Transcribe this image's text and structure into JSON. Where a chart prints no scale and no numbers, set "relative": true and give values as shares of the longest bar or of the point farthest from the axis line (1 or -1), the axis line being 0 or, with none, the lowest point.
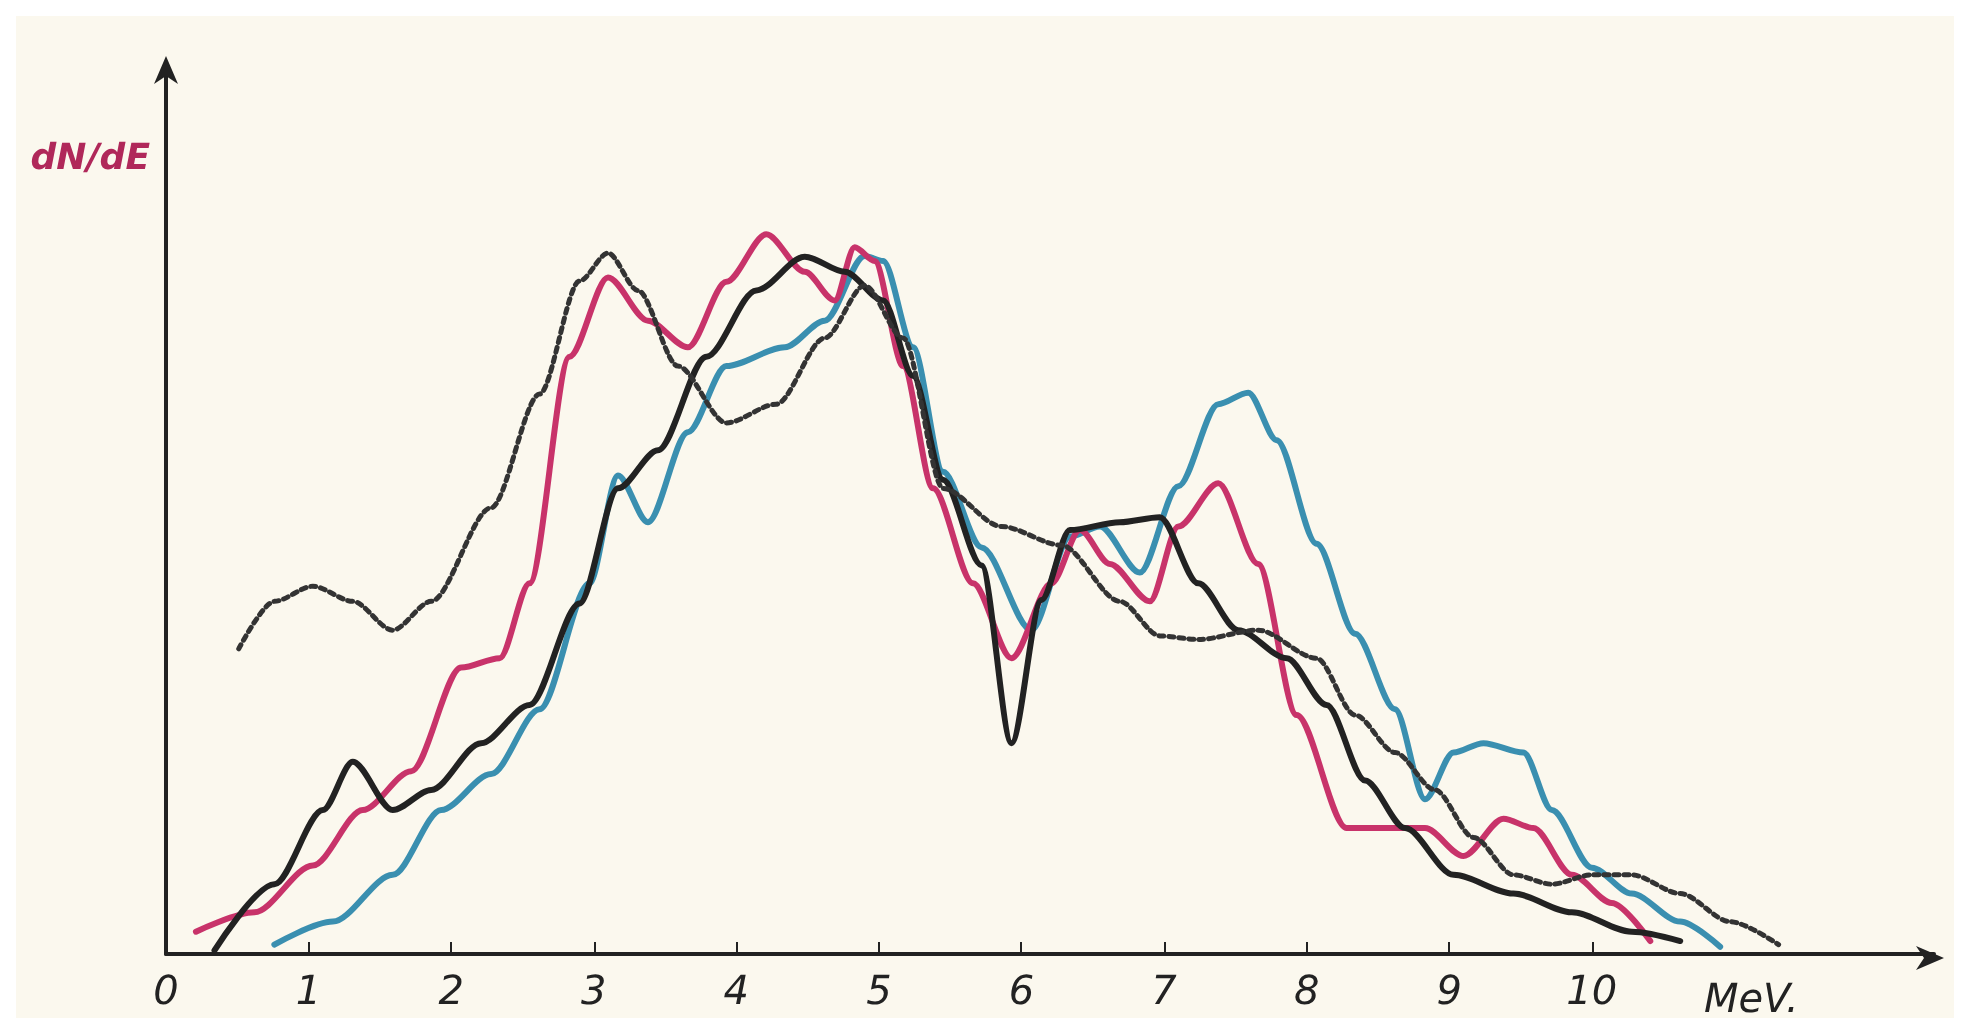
{
  "chart_data": {
    "type": "line",
    "relative": true,
    "xlabel": "MeV.",
    "ylabel": "dN/dE",
    "xlim": [
      0,
      12.4
    ],
    "xticks": [
      0,
      1,
      2,
      3,
      4,
      5,
      6,
      7,
      8,
      9,
      10
    ],
    "grid": false,
    "marker": "none",
    "series": [
      {
        "color": "#3a8fb0",
        "line_style": "solid",
        "x": [
          0.76,
          1.17,
          1.59,
          1.93,
          2.28,
          2.62,
          2.97,
          3.17,
          3.38,
          3.66,
          3.93,
          4.34,
          4.62,
          4.9,
          5.03,
          5.24,
          5.45,
          5.72,
          6.07,
          6.34,
          6.55,
          6.83,
          7.1,
          7.38,
          7.59,
          7.79,
          8.07,
          8.34,
          8.62,
          8.83,
          9.03,
          9.24,
          9.52,
          9.72,
          10.0,
          10.28,
          10.62,
          10.9
        ],
        "values": [
          0.013,
          0.045,
          0.11,
          0.2,
          0.25,
          0.34,
          0.515,
          0.665,
          0.6,
          0.725,
          0.817,
          0.843,
          0.88,
          0.97,
          0.963,
          0.843,
          0.67,
          0.565,
          0.45,
          0.58,
          0.594,
          0.53,
          0.65,
          0.764,
          0.78,
          0.714,
          0.57,
          0.445,
          0.34,
          0.215,
          0.28,
          0.293,
          0.28,
          0.2,
          0.12,
          0.084,
          0.045,
          0.01
        ]
      },
      {
        "color": "#c8336a",
        "line_style": "solid",
        "x": [
          0.21,
          0.62,
          1.03,
          1.38,
          1.72,
          2.07,
          2.34,
          2.55,
          2.83,
          3.1,
          3.38,
          3.66,
          3.93,
          4.21,
          4.48,
          4.69,
          4.83,
          4.97,
          5.17,
          5.38,
          5.66,
          5.93,
          6.21,
          6.41,
          6.62,
          6.9,
          7.1,
          7.38,
          7.66,
          7.93,
          8.28,
          8.55,
          8.83,
          9.1,
          9.38,
          9.59,
          9.86,
          10.14,
          10.41
        ],
        "values": [
          0.031,
          0.058,
          0.123,
          0.2,
          0.254,
          0.398,
          0.411,
          0.515,
          0.83,
          0.94,
          0.88,
          0.843,
          0.934,
          1.0,
          0.948,
          0.908,
          0.982,
          0.963,
          0.817,
          0.647,
          0.515,
          0.411,
          0.515,
          0.589,
          0.542,
          0.49,
          0.594,
          0.654,
          0.542,
          0.332,
          0.175,
          0.175,
          0.175,
          0.136,
          0.188,
          0.175,
          0.11,
          0.071,
          0.018
        ]
      },
      {
        "color": "#222222",
        "line_style": "solid",
        "x": [
          0.34,
          0.76,
          1.1,
          1.31,
          1.59,
          1.86,
          2.21,
          2.55,
          2.9,
          3.17,
          3.45,
          3.79,
          4.14,
          4.48,
          4.76,
          5.03,
          5.24,
          5.45,
          5.72,
          5.93,
          6.14,
          6.34,
          6.69,
          6.97,
          7.24,
          7.52,
          7.86,
          8.14,
          8.41,
          8.69,
          9.03,
          9.45,
          9.86,
          10.28,
          10.62
        ],
        "values": [
          0.005,
          0.097,
          0.2,
          0.267,
          0.2,
          0.228,
          0.293,
          0.346,
          0.487,
          0.647,
          0.7,
          0.83,
          0.922,
          0.969,
          0.948,
          0.908,
          0.803,
          0.659,
          0.54,
          0.293,
          0.492,
          0.589,
          0.6,
          0.607,
          0.515,
          0.45,
          0.411,
          0.346,
          0.241,
          0.175,
          0.11,
          0.084,
          0.058,
          0.031,
          0.018
        ]
      },
      {
        "color": "#333333",
        "line_style": "dotted",
        "x": [
          0.51,
          0.76,
          1.03,
          1.31,
          1.59,
          1.86,
          2.28,
          2.62,
          2.9,
          3.1,
          3.31,
          3.59,
          3.93,
          4.28,
          4.62,
          4.9,
          5.17,
          5.45,
          5.86,
          6.28,
          6.69,
          6.97,
          7.24,
          7.66,
          8.07,
          8.34,
          8.62,
          8.9,
          9.17,
          9.45,
          9.72,
          10.0,
          10.28,
          10.62,
          10.97,
          11.31
        ],
        "values": [
          0.424,
          0.49,
          0.511,
          0.49,
          0.45,
          0.49,
          0.62,
          0.778,
          0.935,
          0.974,
          0.922,
          0.817,
          0.738,
          0.764,
          0.856,
          0.929,
          0.856,
          0.647,
          0.594,
          0.568,
          0.49,
          0.442,
          0.437,
          0.45,
          0.411,
          0.332,
          0.28,
          0.228,
          0.162,
          0.11,
          0.097,
          0.11,
          0.11,
          0.084,
          0.045,
          0.013
        ]
      }
    ]
  }
}
